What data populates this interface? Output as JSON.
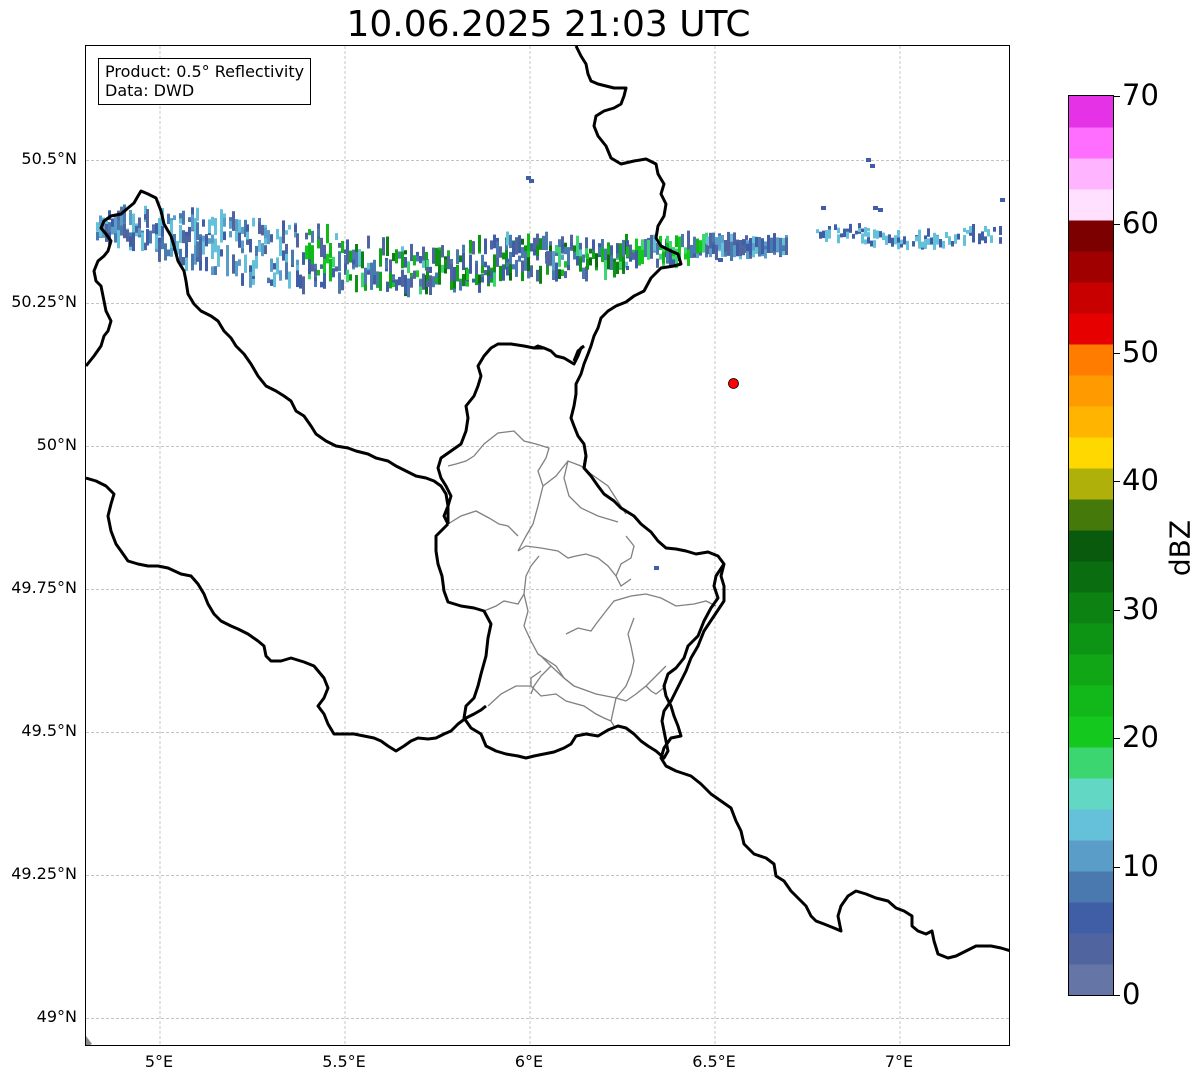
{
  "title": "10.06.2025 21:03 UTC",
  "info": {
    "product": "Product: 0.5° Reflectivity",
    "data": "Data: DWD"
  },
  "map": {
    "lon_range": [
      4.8,
      7.3
    ],
    "lat_range": [
      48.95,
      50.7
    ],
    "lat_ticks": [
      {
        "value": 50.5,
        "label": "50.5°N"
      },
      {
        "value": 50.25,
        "label": "50.25°N"
      },
      {
        "value": 50.0,
        "label": "50°N"
      },
      {
        "value": 49.75,
        "label": "49.75°N"
      },
      {
        "value": 49.5,
        "label": "49.5°N"
      },
      {
        "value": 49.25,
        "label": "49.25°N"
      },
      {
        "value": 49.0,
        "label": "49°N"
      }
    ],
    "lon_ticks": [
      {
        "value": 5.0,
        "label": "5°E"
      },
      {
        "value": 5.5,
        "label": "5.5°E"
      },
      {
        "value": 6.0,
        "label": "6°E"
      },
      {
        "value": 6.5,
        "label": "6.5°E"
      },
      {
        "value": 7.0,
        "label": "7°E"
      }
    ],
    "radar_site": {
      "lon": 6.55,
      "lat": 50.11,
      "color": "#ff0000"
    }
  },
  "colorbar": {
    "label": "dBZ",
    "min": 0,
    "max": 70,
    "tick_labels": [
      "0",
      "10",
      "20",
      "30",
      "40",
      "50",
      "60",
      "70"
    ],
    "tick_values": [
      0,
      10,
      20,
      30,
      40,
      50,
      60,
      70
    ],
    "colors": [
      "#6475a6",
      "#5065a0",
      "#3f5ea6",
      "#4a79b0",
      "#5a9dc8",
      "#65c1da",
      "#62d7c4",
      "#3cd670",
      "#14c81e",
      "#12b81a",
      "#10a616",
      "#0e9414",
      "#0c8212",
      "#0a6e10",
      "#0a5a0e",
      "#457a0a",
      "#b0b00a",
      "#ffd800",
      "#ffb400",
      "#ff9a00",
      "#ff7c00",
      "#e60000",
      "#c80000",
      "#a00000",
      "#7d0000",
      "#ffe0ff",
      "#ffb4ff",
      "#ff6eff",
      "#e632e6"
    ]
  }
}
